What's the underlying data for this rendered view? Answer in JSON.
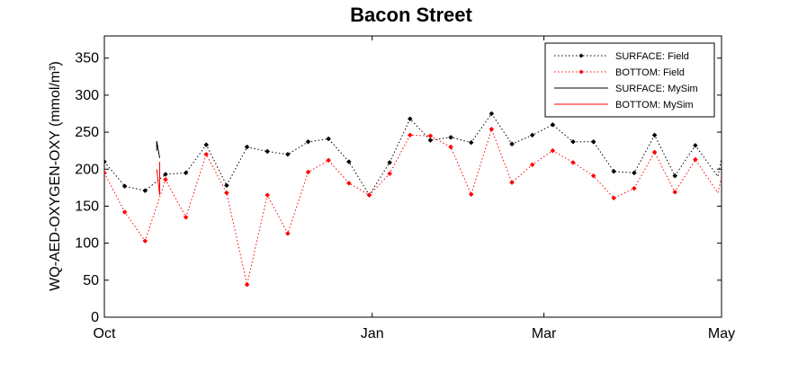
{
  "chart_data": {
    "type": "line",
    "title": "Bacon Street",
    "xlabel": "",
    "ylabel": "WQ-AED-OXYGEN-OXY (mmol/m³)",
    "x_axis_type": "date",
    "xlim": [
      "2014-10-01",
      "2015-05-01"
    ],
    "ylim": [
      0,
      380
    ],
    "x_ticks": [
      {
        "date": "2014-10-01",
        "label": "Oct"
      },
      {
        "date": "2015-01-01",
        "label": "Jan"
      },
      {
        "date": "2015-03-01",
        "label": "Mar"
      },
      {
        "date": "2015-05-01",
        "label": "May"
      }
    ],
    "y_ticks": [
      0,
      50,
      100,
      150,
      200,
      250,
      300,
      350
    ],
    "grid": false,
    "legend_position": "top-right",
    "series": [
      {
        "name": "SURFACE: Field",
        "color": "#000000",
        "style": "dotted-markers",
        "x": [
          "2014-10-01",
          "2014-10-08",
          "2014-10-15",
          "2014-10-22",
          "2014-10-29",
          "2014-11-05",
          "2014-11-12",
          "2014-11-19",
          "2014-11-26",
          "2014-12-03",
          "2014-12-10",
          "2014-12-17",
          "2014-12-24",
          "2014-12-31",
          "2015-01-07",
          "2015-01-14",
          "2015-01-21",
          "2015-01-28",
          "2015-02-04",
          "2015-02-11",
          "2015-02-18",
          "2015-02-25",
          "2015-03-04",
          "2015-03-11",
          "2015-03-18",
          "2015-03-25",
          "2015-04-01",
          "2015-04-08",
          "2015-04-15",
          "2015-04-22",
          "2015-04-29",
          "2015-05-01"
        ],
        "y": [
          210,
          177,
          171,
          193,
          195,
          233,
          178,
          230,
          224,
          220,
          237,
          241,
          210,
          165,
          209,
          268,
          239,
          243,
          236,
          275,
          234,
          246,
          260,
          237,
          237,
          197,
          195,
          246,
          191,
          232,
          null,
          null
        ]
      },
      {
        "name": "BOTTOM: Field",
        "color": "#ff0000",
        "style": "dotted-markers",
        "x": [
          "2014-10-01",
          "2014-10-08",
          "2014-10-15",
          "2014-10-22",
          "2014-10-29",
          "2014-11-05",
          "2014-11-12",
          "2014-11-19",
          "2014-11-26",
          "2014-12-03",
          "2014-12-10",
          "2014-12-17",
          "2014-12-24",
          "2014-12-31",
          "2015-01-07",
          "2015-01-14",
          "2015-01-21",
          "2015-01-28",
          "2015-02-04",
          "2015-02-11",
          "2015-02-18",
          "2015-02-25",
          "2015-03-04",
          "2015-03-11",
          "2015-03-18",
          "2015-03-25",
          "2015-04-01",
          "2015-04-08",
          "2015-04-15",
          "2015-04-22",
          "2015-04-29",
          "2015-05-01"
        ],
        "y": [
          195,
          142,
          103,
          186,
          135,
          220,
          168,
          44,
          165,
          113,
          196,
          212,
          181,
          165,
          194,
          246,
          245,
          230,
          166,
          254,
          182,
          206,
          225,
          209,
          191,
          161,
          174,
          223,
          169,
          213,
          null,
          null
        ]
      },
      {
        "name": "SURFACE: MySim",
        "color": "#000000",
        "style": "solid",
        "x": [
          "2014-10-19",
          "2014-10-19",
          "2014-10-20"
        ],
        "y": [
          225,
          238,
          215
        ]
      },
      {
        "name": "BOTTOM: MySim",
        "color": "#ff0000",
        "style": "solid",
        "x": [
          "2014-10-19",
          "2014-10-20",
          "2014-10-20"
        ],
        "y": [
          200,
          165,
          210
        ]
      }
    ]
  }
}
